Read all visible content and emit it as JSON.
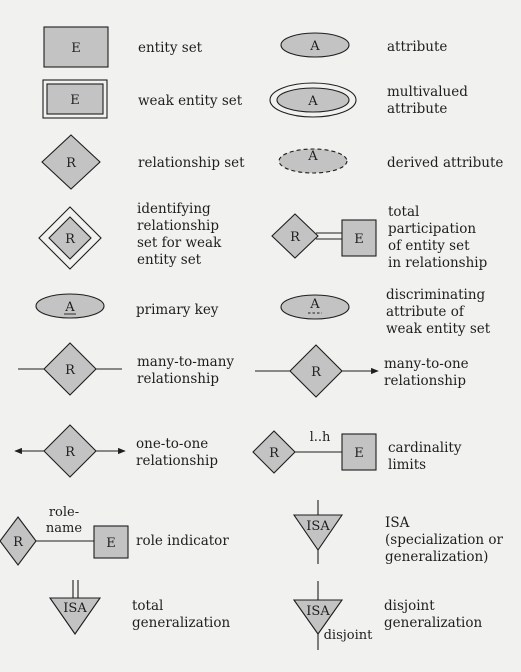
{
  "colors": {
    "fill": "#c3c3c3",
    "stroke": "#1e1e1e",
    "paper": "#f1f1ef"
  },
  "symbols": {
    "entity": "E",
    "attribute": "A",
    "relationship": "R",
    "isa": "ISA",
    "role_name_line1": "role-",
    "role_name_line2": "name",
    "cardinality_range": "l..h",
    "disjoint_tag": "disjoint"
  },
  "legend": {
    "entity_set": "entity set",
    "weak_entity_set": "weak entity set",
    "relationship_set": "relationship set",
    "identifying_rel": [
      "identifying",
      "relationship",
      "set for weak",
      "entity set"
    ],
    "primary_key": "primary key",
    "many_to_many": [
      "many-to-many",
      "relationship"
    ],
    "one_to_one": [
      "one-to-one",
      "relationship"
    ],
    "role_indicator": "role indicator",
    "total_generalization": [
      "total",
      "generalization"
    ],
    "attribute": "attribute",
    "multivalued": [
      "multivalued",
      "attribute"
    ],
    "derived": "derived attribute",
    "total_participation": [
      "total",
      "participation",
      "of entity set",
      "in relationship"
    ],
    "discriminating": [
      "discriminating",
      "attribute of",
      "weak entity set"
    ],
    "many_to_one": [
      "many-to-one",
      "relationship"
    ],
    "cardinality_limits": [
      "cardinality",
      "limits"
    ],
    "isa": [
      "ISA",
      "(specialization or",
      "generalization)"
    ],
    "disjoint_generalization": [
      "disjoint",
      "generalization"
    ]
  }
}
